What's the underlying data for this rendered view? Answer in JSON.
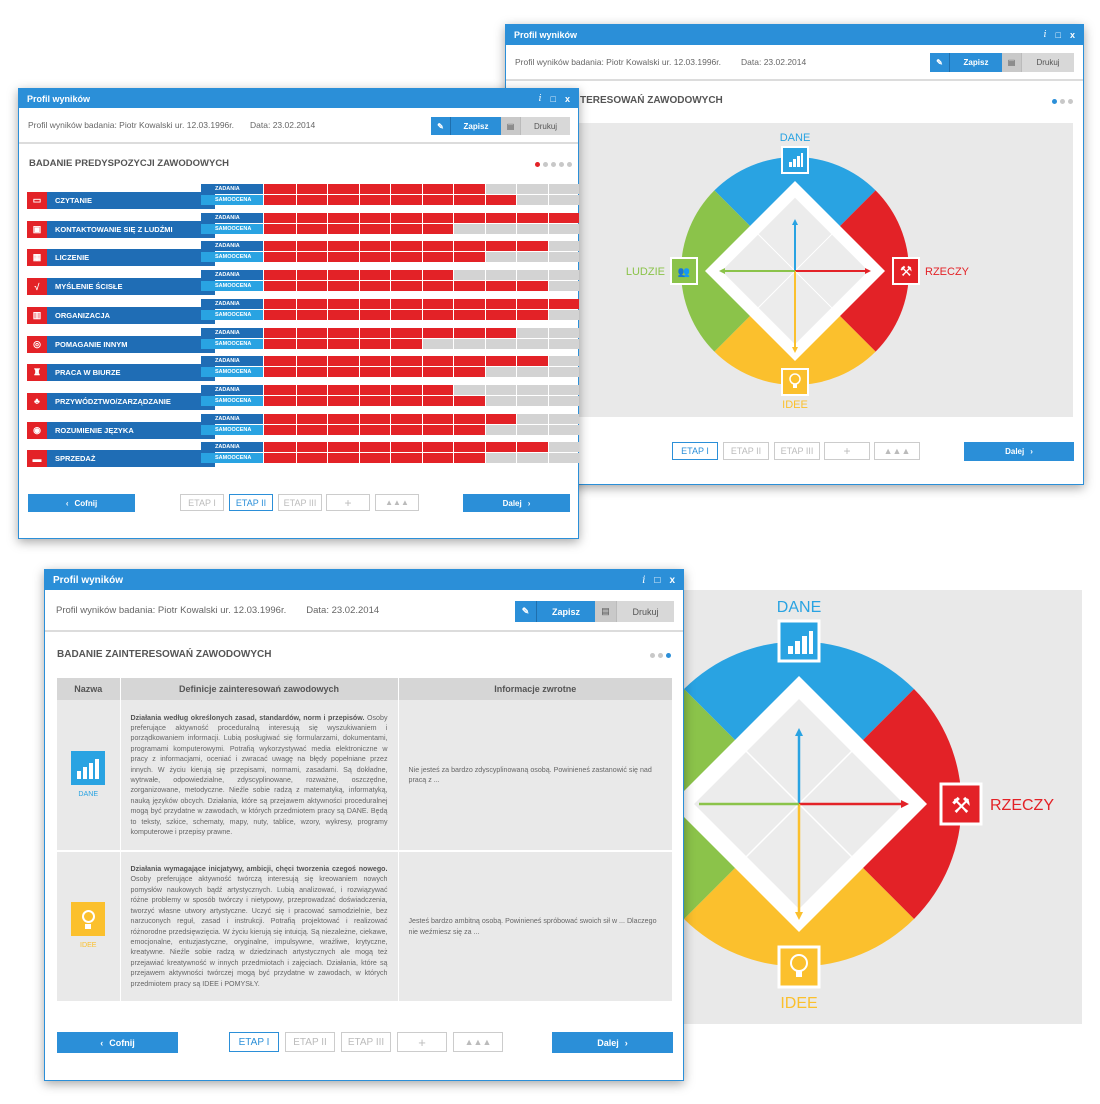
{
  "colors": {
    "blue": "#2b8fd8",
    "dark_blue": "#1f6db5",
    "red": "#e32227",
    "green": "#8bc34a",
    "yellow": "#fbc02d",
    "sky": "#29a3e2"
  },
  "window": {
    "title": "Profil wyników",
    "info_icon": "i",
    "max_icon": "□",
    "close_icon": "x"
  },
  "header": {
    "subject": "Profil wyników badania: Piotr Kowalski ur. 12.03.1996r.",
    "date": "Data: 23.02.2014",
    "save_label": "Zapisz",
    "print_label": "Drukuj"
  },
  "nav": {
    "back": "Cofnij",
    "next": "Dalej",
    "etap1": "ETAP I",
    "etap2": "ETAP II",
    "etap3": "ETAP III",
    "plus": "+"
  },
  "win_bars": {
    "section_title": "BADANIE PREDYSPOZYCJI ZAWODOWYCH",
    "row_labels": {
      "z": "ZADANIA",
      "s": "SAMOOCENA"
    },
    "scale_max": 10,
    "rows": [
      {
        "label": "CZYTANIE",
        "icon": "book-icon",
        "z": 7,
        "s": 8
      },
      {
        "label": "KONTAKTOWANIE SIĘ Z LUDŹMI",
        "icon": "chat-icon",
        "z": 10,
        "s": 6
      },
      {
        "label": "LICZENIE",
        "icon": "calculator-icon",
        "z": 9,
        "s": 7
      },
      {
        "label": "MYŚLENIE ŚCISŁE",
        "icon": "math-icon",
        "z": 6,
        "s": 9
      },
      {
        "label": "ORGANIZACJA",
        "icon": "calendar-icon",
        "z": 10,
        "s": 9
      },
      {
        "label": "POMAGANIE INNYM",
        "icon": "lifebuoy-icon",
        "z": 8,
        "s": 5
      },
      {
        "label": "PRACA W BIURZE",
        "icon": "stamp-icon",
        "z": 9,
        "s": 7
      },
      {
        "label": "PRZYWÓDZTWO/ZARZĄDZANIE",
        "icon": "people-icon",
        "z": 6,
        "s": 7
      },
      {
        "label": "ROZUMIENIE JĘZYKA",
        "icon": "speech-icon",
        "z": 8,
        "s": 7
      },
      {
        "label": "SPRZEDAŻ",
        "icon": "card-icon",
        "z": 9,
        "s": 7
      }
    ]
  },
  "win_diagram": {
    "section_title_visible": "TERESOWAŃ ZAWODOWYCH",
    "labels": {
      "dane": "DANE",
      "rzeczy": "RZECZY",
      "idee": "IDEE",
      "ludzie": "LUDZIE"
    }
  },
  "win_table": {
    "section_title": "BADANIE ZAINTERESOWAŃ ZAWODOWYCH",
    "columns": [
      "Nazwa",
      "Definicje zainteresowań zawodowych",
      "Informacje zwrotne"
    ],
    "rows": [
      {
        "name": "DANE",
        "icon": "chart-bars-icon",
        "def_bold": "Działania według określonych zasad, standardów, norm i przepisów.",
        "def": "Osoby preferujące aktywność proceduralną interesują się wyszukiwaniem i porządkowaniem informacji. Lubią posługiwać się formularzami, dokumentami, programami komputerowymi. Potrafią wykorzystywać media elektroniczne w pracy z informacjami, oceniać i zwracać uwagę na błędy popełniane przez innych. W życiu kierują się przepisami, normami, zasadami. Są dokładne, wytrwałe, odpowiedzialne, zdyscyplinowane, rozważne, oszczędne, zorganizowane, metodyczne. Nieźle sobie radzą z matematyką, informatyką, nauką języków obcych. Działania, które są przejawem aktywności proceduralnej mogą być przydatne w zawodach, w których przedmiotem pracy są DANE. Będą to teksty, szkice, schematy, mapy, nuty, tablice, wzory, wykresy, programy komputerowe i przepisy prawne.",
        "feedback": "Nie jesteś za bardzo zdyscyplinowaną osobą. Powinieneś zastanowić się nad pracą z ..."
      },
      {
        "name": "IDEE",
        "icon": "lightbulb-icon",
        "def_bold": "Działania wymagające inicjatywy, ambicji, chęci tworzenia czegoś nowego.",
        "def": "Osoby preferujące aktywność twórczą interesują się kreowaniem nowych pomysłów naukowych bądź artystycznych. Lubią analizować, i rozwiązywać różne problemy w sposób twórczy i nietypowy, przeprowadzać doświadczenia, tworzyć własne utwory artystyczne. Uczyć się i pracować samodzielnie, bez narzuconych reguł, zasad i instrukcji. Potrafią projektować i realizować różnorodne przedsięwzięcia. W życiu kierują się intuicją. Są niezależne, ciekawe, emocjonalne, entuzjastyczne, oryginalne, impulsywne, wrażliwe, krytyczne, kreatywne. Nieźle sobie radzą w dziedzinach artystycznych ale mogą też przejawiać kreatywność w innych przedmiotach i zajęciach. Działania, które są przejawem aktywności twórczej mogą być przydatne w zawodach, w których przedmiotem pracy są IDEE i POMYSŁY.",
        "feedback": "Jesteś bardzo ambitną osobą. Powinieneś spróbować swoich sił w ... Dlaczego nie weźmiesz się za ..."
      }
    ]
  },
  "big_diagram": {
    "labels": {
      "dane": "DANE",
      "rzeczy": "RZECZY",
      "idee": "IDEE"
    }
  }
}
